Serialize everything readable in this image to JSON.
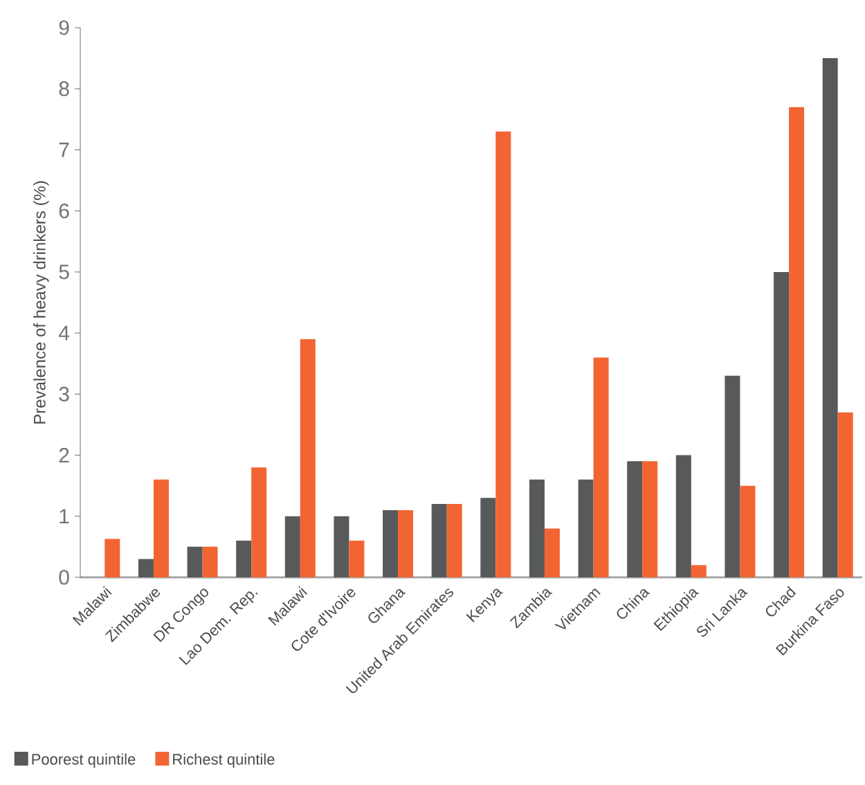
{
  "chart_data": {
    "type": "bar",
    "ylabel": "Prevalence of heavy drinkers (%)",
    "categories": [
      "Malawi",
      "Zimbabwe",
      "DR Congo",
      "Lao Dem. Rep.",
      "Malawi",
      "Cote d'Ivoire",
      "Ghana",
      "United Arab Emirates",
      "Kenya",
      "Zambia",
      "Vietnam",
      "China",
      "Ethiopia",
      "Sri Lanka",
      "Chad",
      "Burkina Faso"
    ],
    "series": [
      {
        "name": "Poorest quintile",
        "color": "#58595b",
        "values": [
          null,
          0.3,
          0.5,
          0.6,
          1.0,
          1.0,
          1.1,
          1.2,
          1.3,
          1.6,
          1.6,
          1.9,
          2.0,
          3.3,
          5.0,
          8.5
        ]
      },
      {
        "name": "Richest quintile",
        "color": "#f26532",
        "values": [
          0.63,
          1.6,
          0.5,
          1.8,
          3.9,
          0.6,
          1.1,
          1.2,
          7.3,
          0.8,
          3.6,
          1.9,
          0.2,
          1.5,
          7.7,
          2.7
        ]
      }
    ],
    "ylim": [
      0,
      9
    ],
    "yticks": [
      0,
      1,
      2,
      3,
      4,
      5,
      6,
      7,
      8,
      9
    ],
    "grid": false,
    "legend": "bottom left"
  }
}
